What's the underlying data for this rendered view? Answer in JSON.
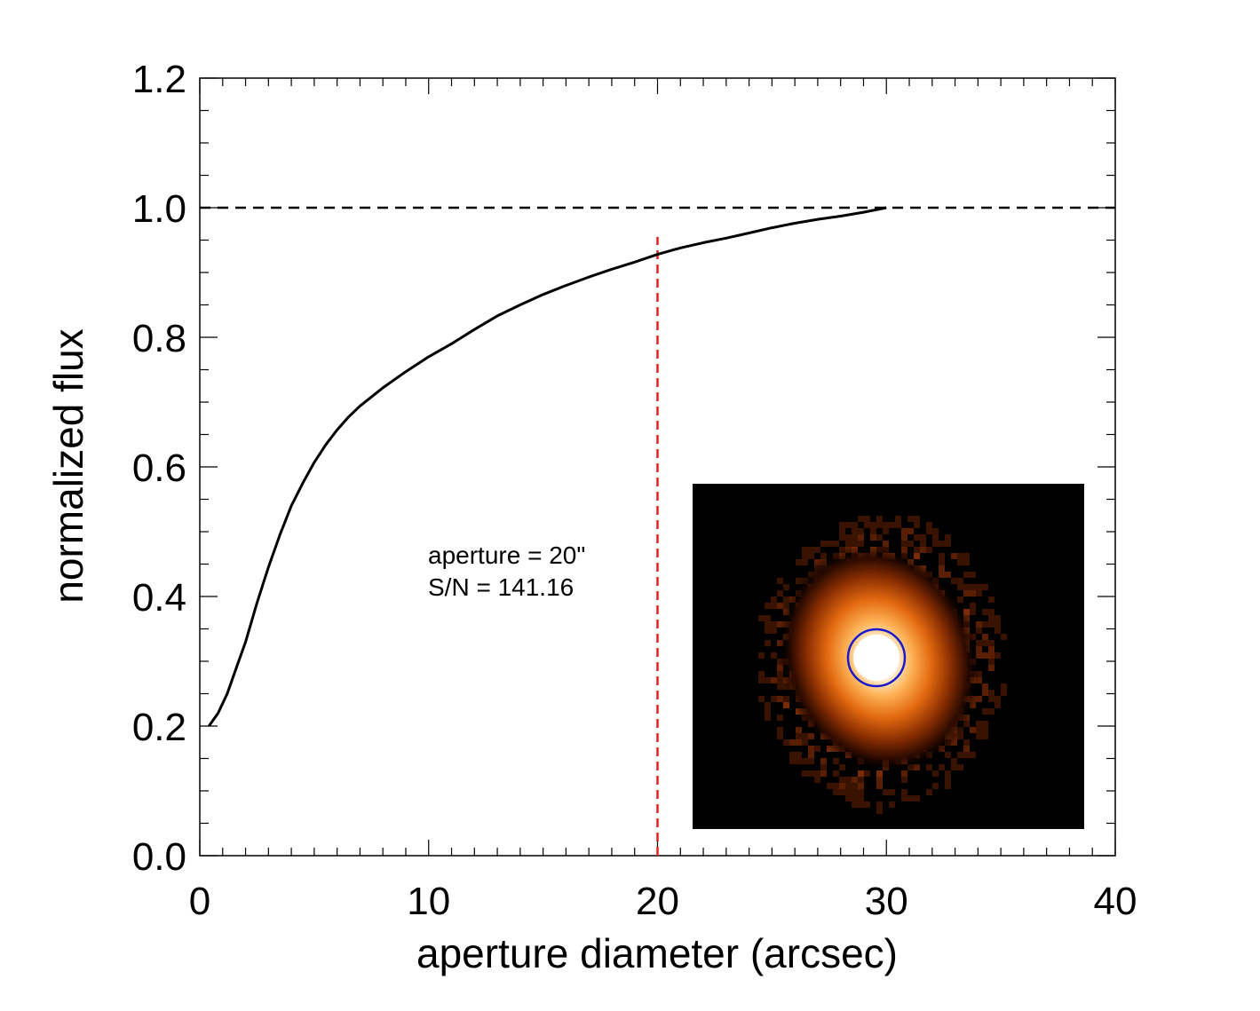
{
  "chart_data": {
    "type": "line",
    "title": "",
    "xlabel": "aperture diameter (arcsec)",
    "ylabel": "normalized flux",
    "xlim": [
      0,
      40
    ],
    "ylim": [
      0,
      1.2
    ],
    "xticks": [
      "0",
      "10",
      "20",
      "30",
      "40"
    ],
    "yticks": [
      "0.0",
      "0.2",
      "0.4",
      "0.6",
      "0.8",
      "1.0",
      "1.2"
    ],
    "grid": false,
    "series": [
      {
        "color": "#000000",
        "x": [
          0.4,
          0.8,
          1.2,
          1.6,
          2.0,
          2.5,
          3.0,
          3.5,
          4.0,
          4.5,
          5.0,
          5.5,
          6.0,
          6.5,
          7.0,
          8.0,
          9.0,
          10.0,
          11.0,
          12.0,
          13.0,
          14.0,
          15.0,
          16.0,
          17.0,
          18.0,
          19.0,
          20.0,
          21.0,
          22.0,
          23.0,
          24.0,
          25.0,
          26.0,
          27.0,
          28.0,
          29.0,
          30.0
        ],
        "y": [
          0.2,
          0.22,
          0.25,
          0.29,
          0.33,
          0.39,
          0.445,
          0.495,
          0.54,
          0.575,
          0.607,
          0.634,
          0.657,
          0.677,
          0.694,
          0.722,
          0.747,
          0.77,
          0.79,
          0.812,
          0.833,
          0.85,
          0.866,
          0.88,
          0.893,
          0.905,
          0.916,
          0.928,
          0.938,
          0.946,
          0.953,
          0.961,
          0.969,
          0.976,
          0.982,
          0.987,
          0.993,
          1.0
        ]
      }
    ],
    "reference_lines": [
      {
        "orientation": "horizontal",
        "value": 1.0,
        "color": "#000000",
        "style": "dashed"
      },
      {
        "orientation": "vertical",
        "value": 20,
        "ymax": 0.955,
        "color": "#e8201c",
        "style": "dashed"
      }
    ],
    "annotations": [
      "aperture =  20\"",
      "S/N =   141.16"
    ],
    "inset": {
      "type": "image",
      "description_color_map": "black-orange-white heat map",
      "aperture_circle_color": "#1a1acc"
    }
  }
}
